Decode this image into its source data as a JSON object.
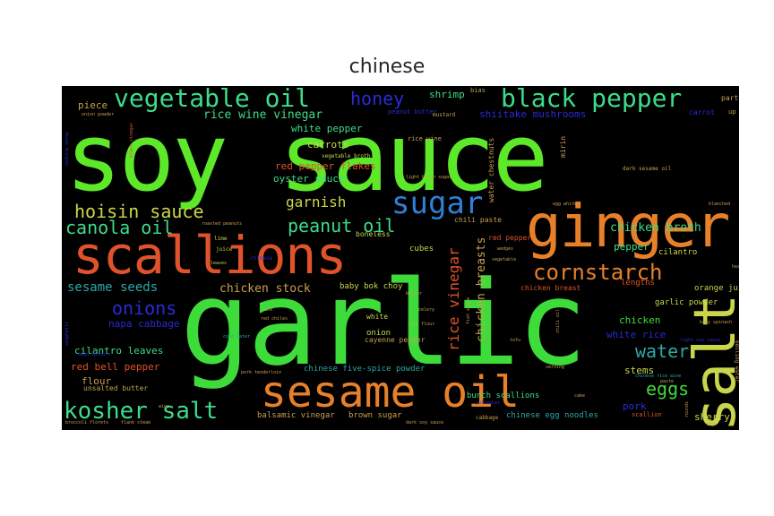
{
  "title": "chinese",
  "colors": {
    "green": "#5ee82a",
    "lime": "#3ddc3a",
    "orange": "#e8802a",
    "red": "#e0532a",
    "yellow": "#c9d64a",
    "blue": "#2f7fd6",
    "teal": "#2fa7a7",
    "navy": "#2a2ad6",
    "tan": "#c8a050",
    "mint": "#3ddc8a"
  },
  "words": {
    "soy_sauce": "soy sauce",
    "garlic": "garlic",
    "scallions": "scallions",
    "ginger": "ginger",
    "sesame_oil": "sesame oil",
    "salt": "salt",
    "vegetable_oil": "vegetable oil",
    "black_pepper": "black pepper",
    "sugar": "sugar",
    "cornstarch": "cornstarch",
    "kosher_salt": "kosher salt",
    "hoisin_sauce": "hoisin sauce",
    "canola_oil": "canola oil",
    "peanut_oil": "peanut oil",
    "honey": "honey",
    "onions": "onions",
    "water": "water",
    "eggs": "eggs",
    "garnish": "garnish",
    "rice_vinegar": "rice vinegar",
    "chicken_breasts": "chicken breasts",
    "sesame_seeds": "sesame seeds",
    "chicken_stock": "chicken stock",
    "chicken_broth": "chicken broth",
    "rice_wine_vinegar": "rice wine vinegar",
    "shiitake_mushrooms": "shiitake mushrooms",
    "white_pepper": "white pepper",
    "red_pepper_flakes": "red pepper flakes",
    "oyster_sauce": "oyster sauce",
    "carrots": "carrots",
    "piece": "piece",
    "shrimp": "shrimp",
    "napa_cabbage": "napa cabbage",
    "cilantro_leaves": "cilantro leaves",
    "red_bell_pepper": "red bell pepper",
    "flour": "flour",
    "white_rice": "white rice",
    "chicken": "chicken",
    "pork": "pork",
    "sherry": "sherry",
    "stems": "stems",
    "pepper": "pepper",
    "baby_bok_choy": "baby bok choy",
    "garlic_powder": "garlic powder",
    "orange_juice": "orange juice",
    "chinese_five_spice": "chinese five-spice powder",
    "bunch_scallions": "bunch scallions",
    "chinese_egg_noodles": "chinese egg noodles",
    "balsamic_vinegar": "balsamic vinegar",
    "brown_sugar": "brown sugar",
    "unsalted_butter": "unsalted butter",
    "cayenne_pepper": "cayenne pepper",
    "onion": "onion",
    "white": "white",
    "cubes": "cubes",
    "red_pepper": "red pepper",
    "chicken_breast": "chicken breast",
    "chili_paste": "chili paste",
    "water_chestnuts": "water chestnuts",
    "boneless": "boneless",
    "lengths": "lengths",
    "cilantro": "cilantro",
    "parts": "parts",
    "carrot": "carrot",
    "mirin": "mirin",
    "rice_wine": "rice wine",
    "peanut_butter": "peanut butter",
    "mustard": "mustard",
    "bias": "bias",
    "dark_sesame_oil": "dark sesame oil",
    "vegetable_broth": "vegetable broth",
    "scallion": "scallion",
    "dark_soy_sauce": "dark soy sauce",
    "cabbage": "cabbage",
    "lime": "lime",
    "juice": "juice",
    "leaves": "leaves",
    "chinese": "chinese",
    "roasted_peanuts": "roasted peanuts",
    "light_brown_sugar": "light brown sugar",
    "egg_white": "egg white",
    "rice_flour": "rice flour",
    "butter": "butter",
    "celery": "celery",
    "fish_sauce": "fish sauce",
    "chili_oil": "chili oil",
    "light_soy_sauce": "light soy sauce",
    "baby_spinach": "baby spinach",
    "boiling_water": "boiling water",
    "wedges": "wedges",
    "vegetable": "vegetable",
    "blanched": "blanched",
    "cooking_spray": "cooking spray",
    "black_vinegar": "black vinegar",
    "spaghetti": "spaghetti",
    "broccoli_florets": "broccoli florets",
    "flank_steak": "flank steak",
    "bean_sprouts": "bean sprouts",
    "pork_tenderloin": "pork tenderloin",
    "red_chiles": "red chiles",
    "cold_water": "cold water",
    "onion_powder": "onion powder",
    "ice": "ice",
    "juliennes": "juliennes",
    "tofu": "tofu",
    "cake": "cake",
    "paste": "paste",
    "wine": "wine",
    "rounds": "rounds",
    "dry": "dry",
    "serving": "serving",
    "up": "up",
    "heat": "heat",
    "chinese_rice_wine": "chinese rice wine"
  }
}
